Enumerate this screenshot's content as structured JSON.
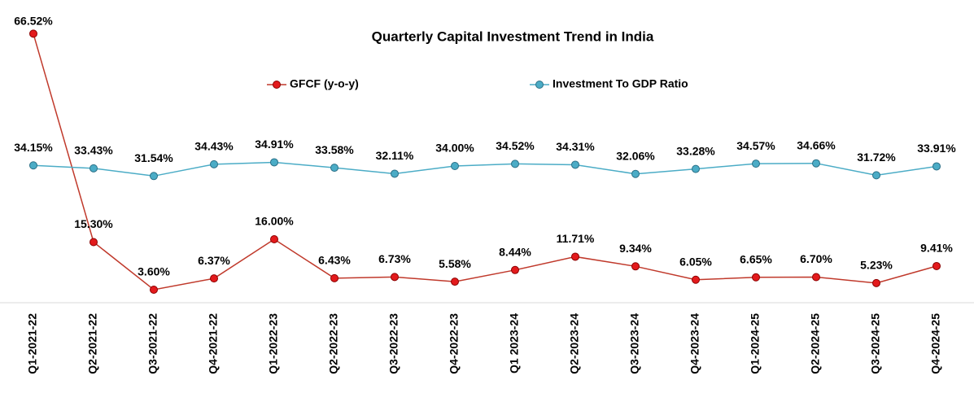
{
  "chart_data": {
    "type": "line",
    "title": "Quarterly Capital Investment Trend in India",
    "categories": [
      "Q1-2021-22",
      "Q2-2021-22",
      "Q3-2021-22",
      "Q4-2021-22",
      "Q1-2022-23",
      "Q2-2022-23",
      "Q3-2022-23",
      "Q4-2022-23",
      "Q1 2023-24",
      "Q2-2023-24",
      "Q3-2023-24",
      "Q4-2023-24",
      "Q1-2024-25",
      "Q2-2024-25",
      "Q3-2024-25",
      "Q4-2024-25"
    ],
    "series": [
      {
        "name": "GFCF (y-o-y)",
        "color": "#c0392b",
        "marker_fill": "#e31a1c",
        "marker_edge": "#8b0000",
        "values": [
          66.52,
          15.3,
          3.6,
          6.37,
          16.0,
          6.43,
          6.73,
          5.58,
          8.44,
          11.71,
          9.34,
          6.05,
          6.65,
          6.7,
          5.23,
          9.41
        ],
        "value_labels": [
          "66.52%",
          "15.30%",
          "3.60%",
          "6.37%",
          "16.00%",
          "6.43%",
          "6.73%",
          "5.58%",
          "8.44%",
          "11.71%",
          "9.34%",
          "6.05%",
          "6.65%",
          "6.70%",
          "5.23%",
          "9.41%"
        ]
      },
      {
        "name": "Investment To GDP Ratio",
        "color": "#4bacc6",
        "marker_fill": "#4bacc6",
        "marker_edge": "#2a6f86",
        "values": [
          34.15,
          33.43,
          31.54,
          34.43,
          34.91,
          33.58,
          32.11,
          34.0,
          34.52,
          34.31,
          32.06,
          33.28,
          34.57,
          34.66,
          31.72,
          33.91
        ],
        "value_labels": [
          "34.15%",
          "33.43%",
          "31.54%",
          "34.43%",
          "34.91%",
          "33.58%",
          "32.11%",
          "34.00%",
          "34.52%",
          "34.31%",
          "32.06%",
          "33.28%",
          "34.57%",
          "34.66%",
          "31.72%",
          "33.91%"
        ]
      }
    ],
    "ylim": [
      0,
      70
    ]
  }
}
